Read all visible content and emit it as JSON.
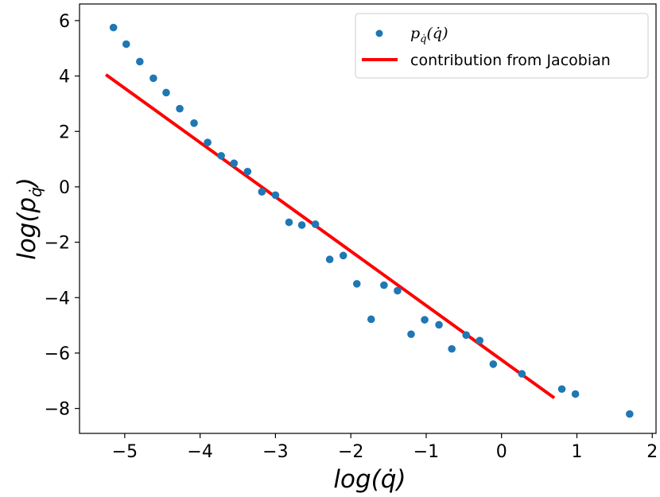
{
  "chart_data": {
    "type": "scatter",
    "xlabel": "log(q̇)",
    "ylabel": "log(p_q̇)",
    "xlim": [
      -5.6,
      2.05
    ],
    "ylim": [
      -8.9,
      6.6
    ],
    "xticks": [
      -5,
      -4,
      -3,
      -2,
      -1,
      0,
      1,
      2
    ],
    "yticks": [
      -8,
      -6,
      -4,
      -2,
      0,
      2,
      4,
      6
    ],
    "xtick_labels": [
      "−5",
      "−4",
      "−3",
      "−2",
      "−1",
      "0",
      "1",
      "2"
    ],
    "ytick_labels": [
      "−8",
      "−6",
      "−4",
      "−2",
      "0",
      "2",
      "4",
      "6"
    ],
    "grid": false,
    "legend_position": "top-right",
    "series": [
      {
        "name": "p_q̇(q̇)",
        "kind": "scatter",
        "color": "#1f77b4",
        "points": [
          [
            -5.15,
            5.75
          ],
          [
            -4.98,
            5.15
          ],
          [
            -4.8,
            4.52
          ],
          [
            -4.62,
            3.92
          ],
          [
            -4.45,
            3.4
          ],
          [
            -4.27,
            2.82
          ],
          [
            -4.08,
            2.3
          ],
          [
            -3.9,
            1.6
          ],
          [
            -3.72,
            1.12
          ],
          [
            -3.55,
            0.85
          ],
          [
            -3.37,
            0.55
          ],
          [
            -3.18,
            -0.18
          ],
          [
            -3.0,
            -0.3
          ],
          [
            -2.82,
            -1.28
          ],
          [
            -2.65,
            -1.38
          ],
          [
            -2.47,
            -1.35
          ],
          [
            -2.28,
            -2.62
          ],
          [
            -2.1,
            -2.48
          ],
          [
            -1.92,
            -3.5
          ],
          [
            -1.73,
            -4.78
          ],
          [
            -1.56,
            -3.55
          ],
          [
            -1.38,
            -3.75
          ],
          [
            -1.2,
            -5.32
          ],
          [
            -1.02,
            -4.8
          ],
          [
            -0.83,
            -4.98
          ],
          [
            -0.66,
            -5.85
          ],
          [
            -0.47,
            -5.35
          ],
          [
            -0.29,
            -5.55
          ],
          [
            -0.11,
            -6.4
          ],
          [
            0.27,
            -6.75
          ],
          [
            0.8,
            -7.3
          ],
          [
            0.98,
            -7.48
          ],
          [
            1.7,
            -8.2
          ]
        ]
      },
      {
        "name": "contribution from Jacobian",
        "kind": "line",
        "color": "#ff0000",
        "points": [
          [
            -5.25,
            4.05
          ],
          [
            0.7,
            -7.62
          ]
        ]
      }
    ],
    "legend": [
      {
        "label_base": "p",
        "label_sub": "q̇",
        "label_rest": "(q̇)",
        "marker": "dot",
        "color": "#1f77b4"
      },
      {
        "label": "contribution from Jacobian",
        "marker": "line",
        "color": "#ff0000"
      }
    ],
    "xlabel_parts": {
      "pre": "log(",
      "var": "q̇",
      "post": ")"
    },
    "ylabel_parts": {
      "pre": "log(",
      "base": "p",
      "sub": "q̇",
      "post": ")"
    }
  }
}
